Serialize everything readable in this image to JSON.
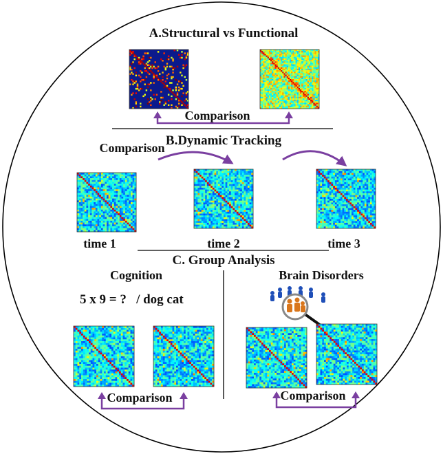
{
  "sections": {
    "a": {
      "title": "A.Structural vs Functional",
      "comparison_label": "Comparison",
      "matrices": [
        "structural-connectivity-matrix",
        "functional-connectivity-matrix"
      ]
    },
    "b": {
      "title": "B.Dynamic Tracking",
      "comparison_label": "Comparison",
      "time_labels": [
        "time 1",
        "time 2",
        "time 3"
      ]
    },
    "c": {
      "title": "C. Group Analysis",
      "cognition": {
        "title": "Cognition",
        "task_text": "5 x 9 = ?   / dog cat",
        "comparison_label": "Comparison"
      },
      "disorders": {
        "title": "Brain Disorders",
        "comparison_label": "Comparison",
        "icon": "people-magnifier-icon"
      }
    }
  },
  "colors": {
    "arrow": "#7a3fa0",
    "structural_bg": "#0b1a8c",
    "matrix_base": "#2f8fd8",
    "outline": "#000000"
  }
}
